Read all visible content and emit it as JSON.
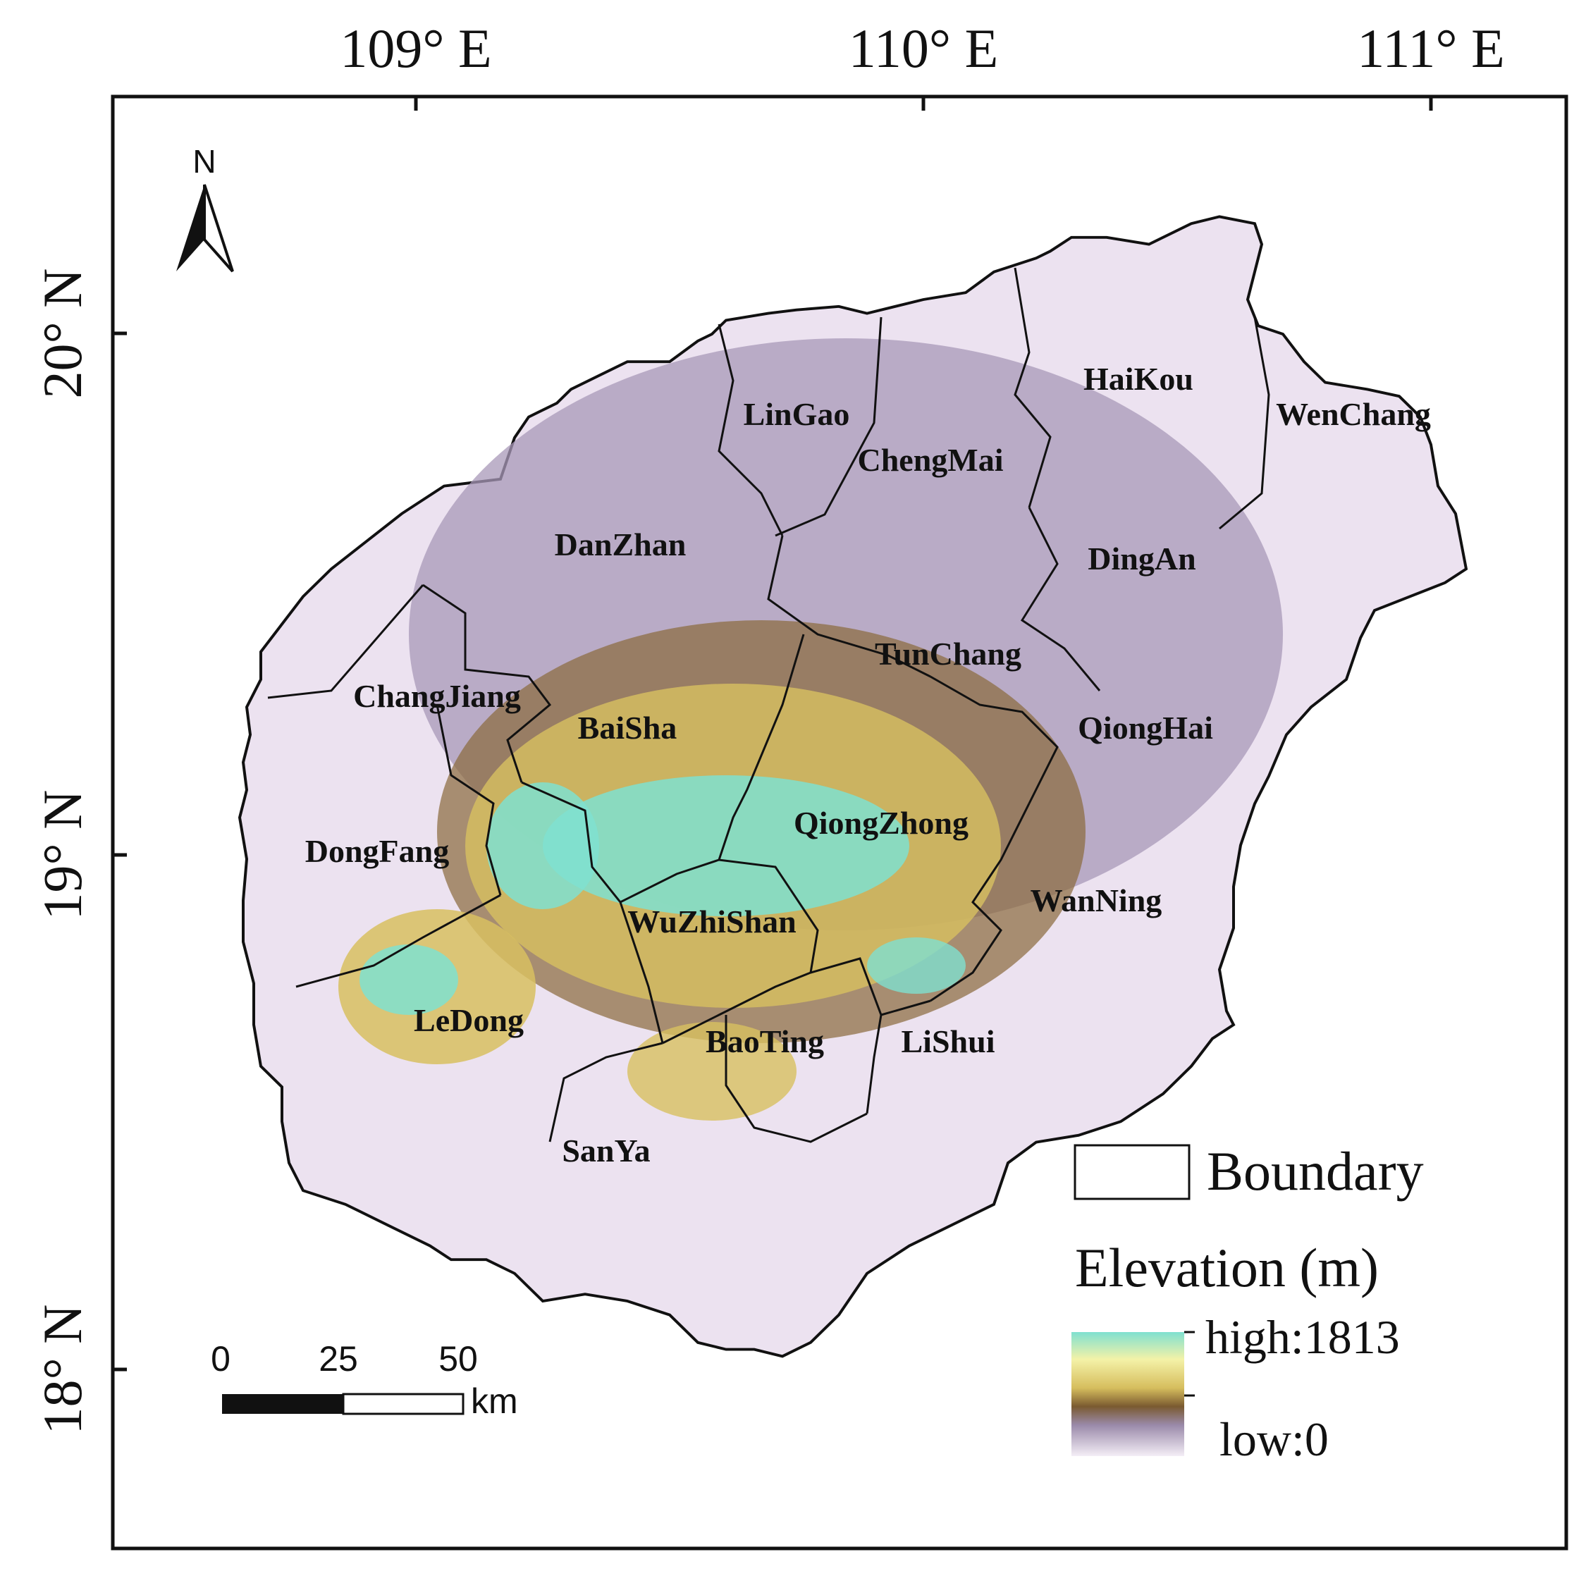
{
  "axes": {
    "longitude_labels": [
      "109° E",
      "110° E",
      "111° E"
    ],
    "latitude_labels": [
      "20° N",
      "19° N",
      "18° N"
    ]
  },
  "north_arrow": {
    "label": "N",
    "icon": "north-arrow-icon"
  },
  "regions": [
    "LinGao",
    "ChengMai",
    "HaiKou",
    "WenChang",
    "DanZhan",
    "DingAn",
    "TunChang",
    "ChangJiang",
    "BaiSha",
    "QiongHai",
    "QiongZhong",
    "DongFang",
    "WanNing",
    "WuZhiShan",
    "LeDong",
    "BaoTing",
    "LiShui",
    "SanYa"
  ],
  "scale_bar": {
    "ticks": [
      "0",
      "25",
      "50"
    ],
    "unit": "km"
  },
  "legend": {
    "boundary_label": "Boundary",
    "elevation_title": "Elevation (m)",
    "high_label": "high:1813",
    "low_label": "low:0",
    "colors": [
      "#7fe0d0",
      "#f2f0a0",
      "#d8c060",
      "#7a5a30",
      "#9a8aaa",
      "#f4eef6"
    ]
  }
}
